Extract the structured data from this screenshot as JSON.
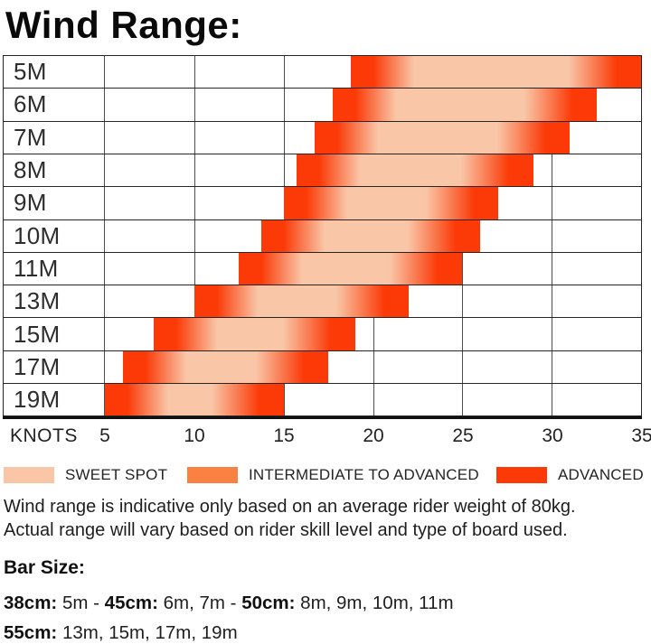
{
  "title": "Wind Range:",
  "chart_data": {
    "type": "bar",
    "subtype": "horizontal-range-bars",
    "title": "Wind Range:",
    "xlabel": "KNOTS",
    "xlim": [
      5,
      35
    ],
    "x_ticks": [
      "5",
      "10",
      "15",
      "20",
      "25",
      "30",
      "35"
    ],
    "grid": true,
    "categories": [
      "5M",
      "6M",
      "7M",
      "8M",
      "9M",
      "10M",
      "11M",
      "13M",
      "15M",
      "17M",
      "19M"
    ],
    "rows": [
      {
        "label": "5M",
        "start_knots": 18.75,
        "end_knots": 35
      },
      {
        "label": "6M",
        "start_knots": 17.75,
        "end_knots": 32.5
      },
      {
        "label": "7M",
        "start_knots": 16.75,
        "end_knots": 31
      },
      {
        "label": "8M",
        "start_knots": 15.75,
        "end_knots": 29
      },
      {
        "label": "9M",
        "start_knots": 15,
        "end_knots": 27
      },
      {
        "label": "10M",
        "start_knots": 13.75,
        "end_knots": 26
      },
      {
        "label": "11M",
        "start_knots": 12.5,
        "end_knots": 25
      },
      {
        "label": "13M",
        "start_knots": 10,
        "end_knots": 22
      },
      {
        "label": "15M",
        "start_knots": 7.75,
        "end_knots": 19
      },
      {
        "label": "17M",
        "start_knots": 6,
        "end_knots": 17.5
      },
      {
        "label": "19M",
        "start_knots": 5,
        "end_knots": 15
      }
    ],
    "bar_shading": "advanced at both ends fading through intermediate into sweet spot in the middle",
    "colors": {
      "sweet_spot": "#f9c6a7",
      "intermediate": "#f98142",
      "advanced": "#fb3a07"
    }
  },
  "legend": {
    "items": [
      {
        "label": "SWEET SPOT",
        "color": "#f9c6a7"
      },
      {
        "label": "INTERMEDIATE TO ADVANCED",
        "color": "#f98142"
      },
      {
        "label": "ADVANCED",
        "color": "#fb3a07"
      }
    ]
  },
  "disclaimer": {
    "line1": "Wind range is indicative only based on an average rider weight of 80kg.",
    "line2": "Actual range will vary based on rider skill level and type of board used."
  },
  "bar_size": {
    "heading": "Bar Size:",
    "line1": [
      {
        "text": "38cm:",
        "bold": true
      },
      {
        "text": " 5m - ",
        "bold": false
      },
      {
        "text": "45cm:",
        "bold": true
      },
      {
        "text": " 6m, 7m - ",
        "bold": false
      },
      {
        "text": "50cm:",
        "bold": true
      },
      {
        "text": " 8m, 9m, 10m, 11m",
        "bold": false
      }
    ],
    "line2": [
      {
        "text": "55cm:",
        "bold": true
      },
      {
        "text": " 13m, 15m, 17m, 19m",
        "bold": false
      }
    ]
  }
}
